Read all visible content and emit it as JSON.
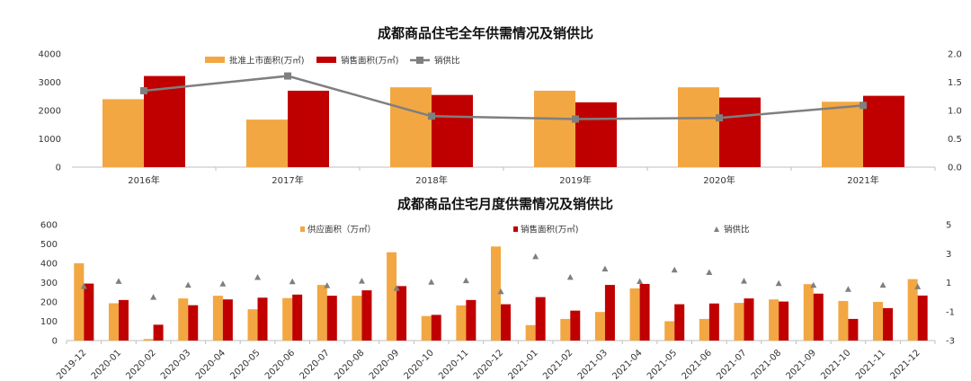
{
  "colors": {
    "supply": "#F2A742",
    "sales": "#C00000",
    "ratio": "#7F7F7F"
  },
  "chart_data": [
    {
      "type": "bar",
      "title": "成都商品住宅全年供需情况及销供比",
      "categories": [
        "2016年",
        "2017年",
        "2018年",
        "2019年",
        "2020年",
        "2021年"
      ],
      "series": [
        {
          "name": "批准上市面积(万㎡)",
          "values": [
            2400,
            1680,
            2820,
            2700,
            2820,
            2310
          ]
        },
        {
          "name": "销售面积(万㎡)",
          "values": [
            3220,
            2700,
            2550,
            2290,
            2460,
            2520
          ]
        },
        {
          "name": "销供比",
          "type": "line",
          "axis": "right",
          "values": [
            1.35,
            1.61,
            0.9,
            0.85,
            0.87,
            1.09
          ]
        }
      ],
      "ylim": [
        0,
        4000
      ],
      "y_ticks": [
        "0",
        "1000",
        "2000",
        "3000",
        "4000"
      ],
      "y2lim": [
        0,
        2.0
      ],
      "y2_ticks": [
        "0.0",
        "0.5",
        "1.0",
        "1.5",
        "2.0"
      ],
      "legend_position": "top"
    },
    {
      "type": "bar",
      "title": "成都商品住宅月度供需情况及销供比",
      "categories": [
        "2019-12",
        "2020-01",
        "2020-02",
        "2020-03",
        "2020-04",
        "2020-05",
        "2020-06",
        "2020-07",
        "2020-08",
        "2020-09",
        "2020-10",
        "2020-11",
        "2020-12",
        "2021-01",
        "2021-02",
        "2021-03",
        "2021-04",
        "2021-05",
        "2021-06",
        "2021-07",
        "2021-08",
        "2021-09",
        "2021-10",
        "2021-11",
        "2021-12"
      ],
      "series": [
        {
          "name": "供应面积（万㎡）",
          "values": [
            400,
            193,
            8,
            218,
            232,
            162,
            220,
            288,
            232,
            457,
            127,
            182,
            487,
            80,
            112,
            148,
            270,
            100,
            112,
            195,
            213,
            292,
            205,
            200,
            318
          ]
        },
        {
          "name": "销售面积(万㎡)",
          "values": [
            295,
            210,
            82,
            183,
            213,
            222,
            238,
            232,
            260,
            282,
            133,
            210,
            188,
            225,
            155,
            288,
            293,
            188,
            192,
            218,
            202,
            243,
            112,
            168,
            233
          ]
        },
        {
          "name": "销供比",
          "type": "scatter",
          "axis": "right",
          "values": [
            0.75,
            1.1,
            0,
            0.84,
            0.92,
            1.37,
            1.08,
            0.81,
            1.12,
            0.62,
            1.05,
            1.15,
            0.39,
            2.81,
            1.38,
            1.95,
            1.09,
            1.88,
            1.71,
            1.12,
            0.95,
            0.83,
            0.55,
            0.84,
            0.73
          ]
        }
      ],
      "ylim": [
        0,
        600
      ],
      "y_ticks": [
        "0",
        "100",
        "200",
        "300",
        "400",
        "500",
        "600"
      ],
      "y2lim": [
        -3,
        5
      ],
      "y2_ticks": [
        "-3",
        "-1",
        "1",
        "3",
        "5"
      ],
      "legend_position": "top"
    }
  ]
}
